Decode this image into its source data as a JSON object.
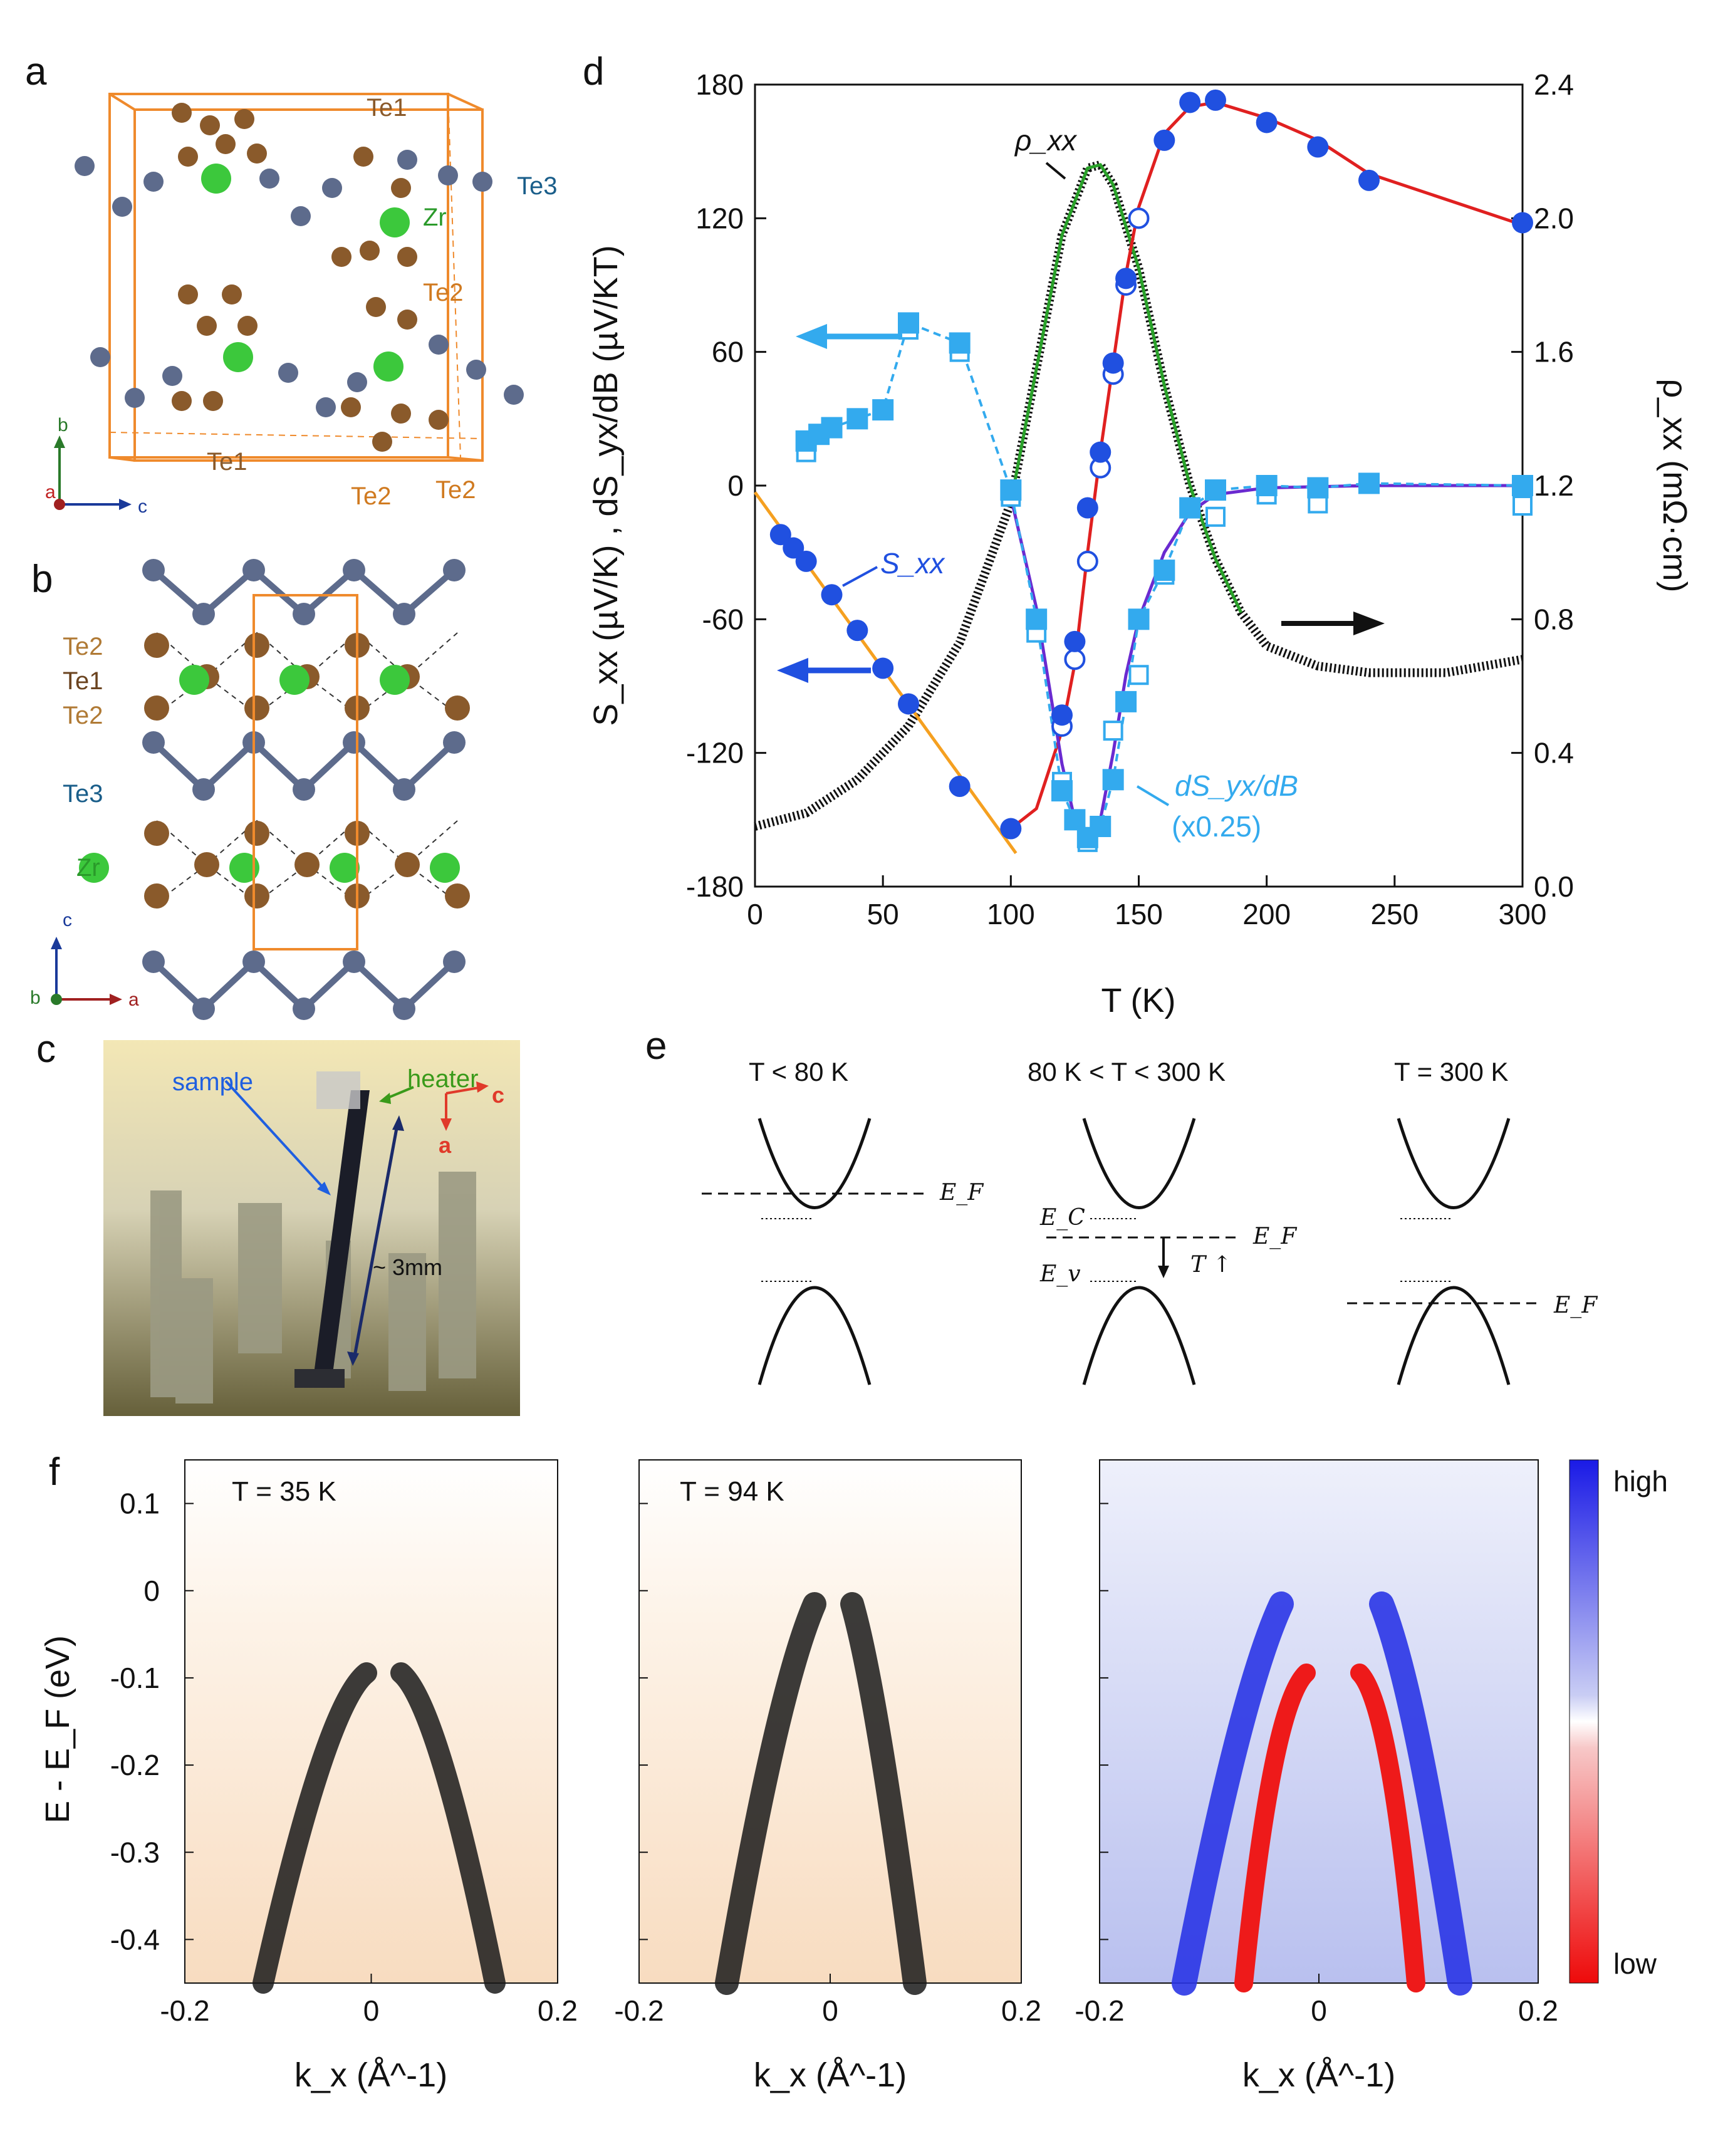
{
  "panels": {
    "a": "a",
    "b": "b",
    "c": "c",
    "d": "d",
    "e": "e",
    "f": "f"
  },
  "panel_a": {
    "labels": {
      "te1_top": "Te1",
      "te3": "Te3",
      "zr": "Zr",
      "te2_right": "Te2",
      "te1_bottom": "Te1",
      "te2_bottom1": "Te2",
      "te2_bottom2": "Te2"
    },
    "axes": {
      "b": "b",
      "a": "a",
      "c": "c"
    }
  },
  "panel_b": {
    "labels": {
      "te2_a": "Te2",
      "te1": "Te1",
      "te2_b": "Te2",
      "te3": "Te3",
      "zr": "Zr"
    },
    "axes": {
      "c": "c",
      "b": "b",
      "a": "a"
    }
  },
  "panel_c": {
    "sample": "sample",
    "heater": "heater",
    "length": "~ 3mm",
    "axis_c": "c",
    "axis_a": "a"
  },
  "panel_e": {
    "titles": [
      "T < 80 K",
      "80 K < T < 300 K",
      "T = 300 K"
    ],
    "ef": "E_F",
    "ec": "E_C",
    "ev": "E_v",
    "t_up": "T ↑"
  },
  "panel_f": {
    "titles": [
      "T = 35 K",
      "T = 94 K"
    ],
    "colorbar_high": "high",
    "colorbar_low": "low",
    "xlabel": "k_x (Å^-1)",
    "ylabel": "E - E_F (eV)"
  },
  "chart_data": [
    {
      "id": "d",
      "type": "scatter",
      "title": "",
      "xlabel": "T (K)",
      "ylabel_left": "S_xx (µV/K) , dS_yx/dB (µV/KT)",
      "ylabel_right": "ρ_xx (mΩ·cm)",
      "xlim": [
        0,
        300
      ],
      "ylim_left": [
        -180,
        180
      ],
      "ylim_right": [
        0.0,
        2.4
      ],
      "x_ticks": [
        0,
        50,
        100,
        150,
        200,
        250,
        300
      ],
      "y_left_ticks": [
        -180,
        -120,
        -60,
        0,
        60,
        120,
        180
      ],
      "y_right_ticks": [
        "0.0",
        "0.4",
        "0.8",
        "1.2",
        "1.6",
        "2.0",
        "2.4"
      ],
      "annotations": {
        "rho_label": "ρ_xx",
        "sxx_label": "S_xx",
        "dsyx_label": "dS_yx/dB",
        "dsyx_scale": "(x0.25)"
      },
      "series": [
        {
          "name": "S_xx (filled circles)",
          "color": "#2050e0",
          "x": [
            10,
            15,
            20,
            30,
            40,
            50,
            60,
            80,
            100,
            120,
            125,
            130,
            135,
            140,
            145,
            160,
            170,
            180,
            200,
            220,
            240,
            300
          ],
          "y": [
            -22,
            -28,
            -34,
            -49,
            -65,
            -82,
            -98,
            -135,
            -154,
            -103,
            -70,
            -10,
            15,
            55,
            93,
            155,
            172,
            173,
            163,
            152,
            137,
            118
          ]
        },
        {
          "name": "S_xx (open circles)",
          "color": "#2050e0",
          "x": [
            120,
            125,
            130,
            135,
            140,
            145,
            150
          ],
          "y": [
            -108,
            -78,
            -34,
            8,
            50,
            90,
            120
          ]
        },
        {
          "name": "dS_yx/dB (filled squares)",
          "color": "#33aaee",
          "x": [
            20,
            25,
            30,
            40,
            50,
            60,
            80,
            100,
            110,
            120,
            125,
            130,
            135,
            140,
            145,
            150,
            160,
            170,
            180,
            200,
            220,
            240,
            300
          ],
          "y": [
            20,
            23,
            26,
            30,
            34,
            73,
            64,
            -2,
            -60,
            -137,
            -150,
            -158,
            -153,
            -132,
            -97,
            -60,
            -38,
            -10,
            -2,
            0,
            -1,
            1,
            0
          ]
        },
        {
          "name": "dS_yx/dB (open squares)",
          "color": "#33aaee",
          "x": [
            20,
            60,
            80,
            100,
            110,
            120,
            130,
            140,
            150,
            160,
            180,
            200,
            220,
            300
          ],
          "y": [
            15,
            70,
            60,
            -5,
            -66,
            -133,
            -160,
            -110,
            -85,
            -40,
            -14,
            -4,
            -8,
            -9
          ]
        },
        {
          "name": "rho_xx",
          "color": "#111111",
          "axis": "right",
          "x": [
            0,
            20,
            40,
            60,
            80,
            100,
            110,
            120,
            130,
            135,
            140,
            150,
            160,
            170,
            180,
            190,
            200,
            220,
            240,
            270,
            300
          ],
          "y": [
            0.18,
            0.22,
            0.32,
            0.48,
            0.73,
            1.15,
            1.55,
            1.95,
            2.15,
            2.16,
            2.1,
            1.85,
            1.5,
            1.2,
            0.98,
            0.82,
            0.72,
            0.66,
            0.64,
            0.64,
            0.68
          ]
        }
      ]
    }
  ]
}
